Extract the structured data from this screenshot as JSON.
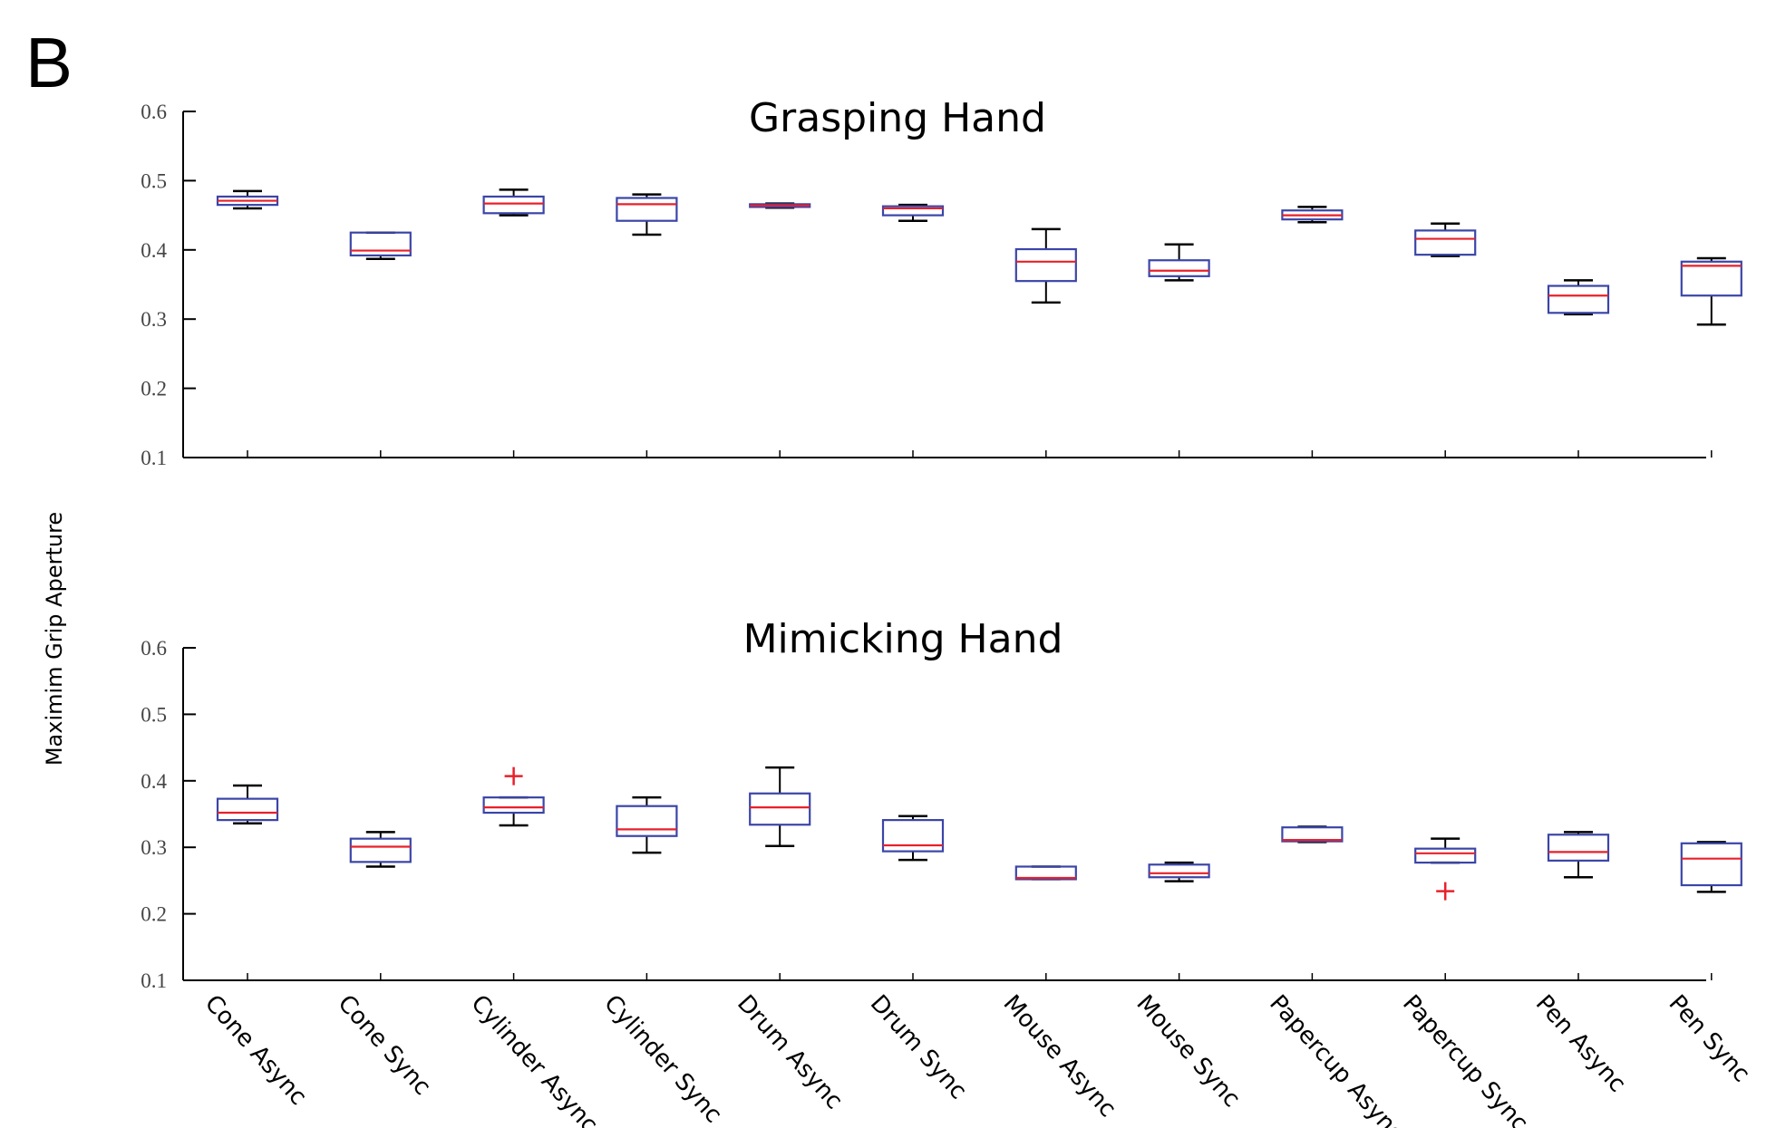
{
  "panel_label": "B",
  "ylabel": "Maximim Grip Aperture",
  "colors": {
    "box": "#3a45a8",
    "median": "#e8202a",
    "whisker": "#000000",
    "outlier": "#e8202a"
  },
  "chart_data": [
    {
      "type": "box",
      "title": "Grasping Hand",
      "ylim": [
        0.1,
        0.6
      ],
      "yticks": [
        "0.1",
        "0.2",
        "0.3",
        "0.4",
        "0.5",
        "0.6"
      ],
      "categories": [
        "Cone Async",
        "Cone Sync",
        "Cylinder Async",
        "Cylinder Sync",
        "Drum Async",
        "Drum Sync",
        "Mouse Async",
        "Mouse Sync",
        "Papercup Async",
        "Papercup Sync",
        "Pen Async",
        "Pen Sync"
      ],
      "boxes": [
        {
          "whislo": 0.46,
          "q1": 0.465,
          "med": 0.471,
          "q3": 0.477,
          "whishi": 0.485,
          "fliers": []
        },
        {
          "whislo": 0.387,
          "q1": 0.392,
          "med": 0.399,
          "q3": 0.425,
          "whishi": 0.425,
          "fliers": []
        },
        {
          "whislo": 0.45,
          "q1": 0.453,
          "med": 0.467,
          "q3": 0.477,
          "whishi": 0.487,
          "fliers": []
        },
        {
          "whislo": 0.422,
          "q1": 0.442,
          "med": 0.466,
          "q3": 0.475,
          "whishi": 0.48,
          "fliers": []
        },
        {
          "whislo": 0.461,
          "q1": 0.462,
          "med": 0.464,
          "q3": 0.466,
          "whishi": 0.467,
          "fliers": []
        },
        {
          "whislo": 0.442,
          "q1": 0.45,
          "med": 0.46,
          "q3": 0.463,
          "whishi": 0.465,
          "fliers": []
        },
        {
          "whislo": 0.324,
          "q1": 0.355,
          "med": 0.383,
          "q3": 0.401,
          "whishi": 0.43,
          "fliers": []
        },
        {
          "whislo": 0.356,
          "q1": 0.362,
          "med": 0.37,
          "q3": 0.385,
          "whishi": 0.408,
          "fliers": []
        },
        {
          "whislo": 0.44,
          "q1": 0.444,
          "med": 0.45,
          "q3": 0.457,
          "whishi": 0.462,
          "fliers": []
        },
        {
          "whislo": 0.391,
          "q1": 0.393,
          "med": 0.416,
          "q3": 0.428,
          "whishi": 0.438,
          "fliers": []
        },
        {
          "whislo": 0.307,
          "q1": 0.309,
          "med": 0.334,
          "q3": 0.348,
          "whishi": 0.356,
          "fliers": []
        },
        {
          "whislo": 0.292,
          "q1": 0.334,
          "med": 0.377,
          "q3": 0.383,
          "whishi": 0.388,
          "fliers": []
        }
      ]
    },
    {
      "type": "box",
      "title": "Mimicking Hand",
      "ylim": [
        0.1,
        0.6
      ],
      "yticks": [
        "0.1",
        "0.2",
        "0.3",
        "0.4",
        "0.5",
        "0.6"
      ],
      "categories": [
        "Cone Async",
        "Cone Sync",
        "Cylinder Async",
        "Cylinder Sync",
        "Drum Async",
        "Drum Sync",
        "Mouse Async",
        "Mouse Sync",
        "Papercup Async",
        "Papercup Sync",
        "Pen Async",
        "Pen Sync"
      ],
      "boxes": [
        {
          "whislo": 0.336,
          "q1": 0.341,
          "med": 0.352,
          "q3": 0.373,
          "whishi": 0.393,
          "fliers": []
        },
        {
          "whislo": 0.271,
          "q1": 0.278,
          "med": 0.301,
          "q3": 0.313,
          "whishi": 0.323,
          "fliers": []
        },
        {
          "whislo": 0.333,
          "q1": 0.352,
          "med": 0.36,
          "q3": 0.375,
          "whishi": 0.375,
          "fliers": [
            0.407
          ]
        },
        {
          "whislo": 0.292,
          "q1": 0.317,
          "med": 0.327,
          "q3": 0.362,
          "whishi": 0.375,
          "fliers": []
        },
        {
          "whislo": 0.302,
          "q1": 0.334,
          "med": 0.36,
          "q3": 0.381,
          "whishi": 0.42,
          "fliers": []
        },
        {
          "whislo": 0.281,
          "q1": 0.294,
          "med": 0.303,
          "q3": 0.341,
          "whishi": 0.347,
          "fliers": []
        },
        {
          "whislo": 0.252,
          "q1": 0.252,
          "med": 0.254,
          "q3": 0.271,
          "whishi": 0.271,
          "fliers": []
        },
        {
          "whislo": 0.249,
          "q1": 0.255,
          "med": 0.261,
          "q3": 0.274,
          "whishi": 0.277,
          "fliers": []
        },
        {
          "whislo": 0.308,
          "q1": 0.309,
          "med": 0.311,
          "q3": 0.33,
          "whishi": 0.331,
          "fliers": []
        },
        {
          "whislo": 0.277,
          "q1": 0.277,
          "med": 0.291,
          "q3": 0.298,
          "whishi": 0.313,
          "fliers": [
            0.234
          ]
        },
        {
          "whislo": 0.255,
          "q1": 0.28,
          "med": 0.293,
          "q3": 0.319,
          "whishi": 0.323,
          "fliers": []
        },
        {
          "whislo": 0.233,
          "q1": 0.243,
          "med": 0.283,
          "q3": 0.306,
          "whishi": 0.308,
          "fliers": []
        }
      ]
    }
  ]
}
